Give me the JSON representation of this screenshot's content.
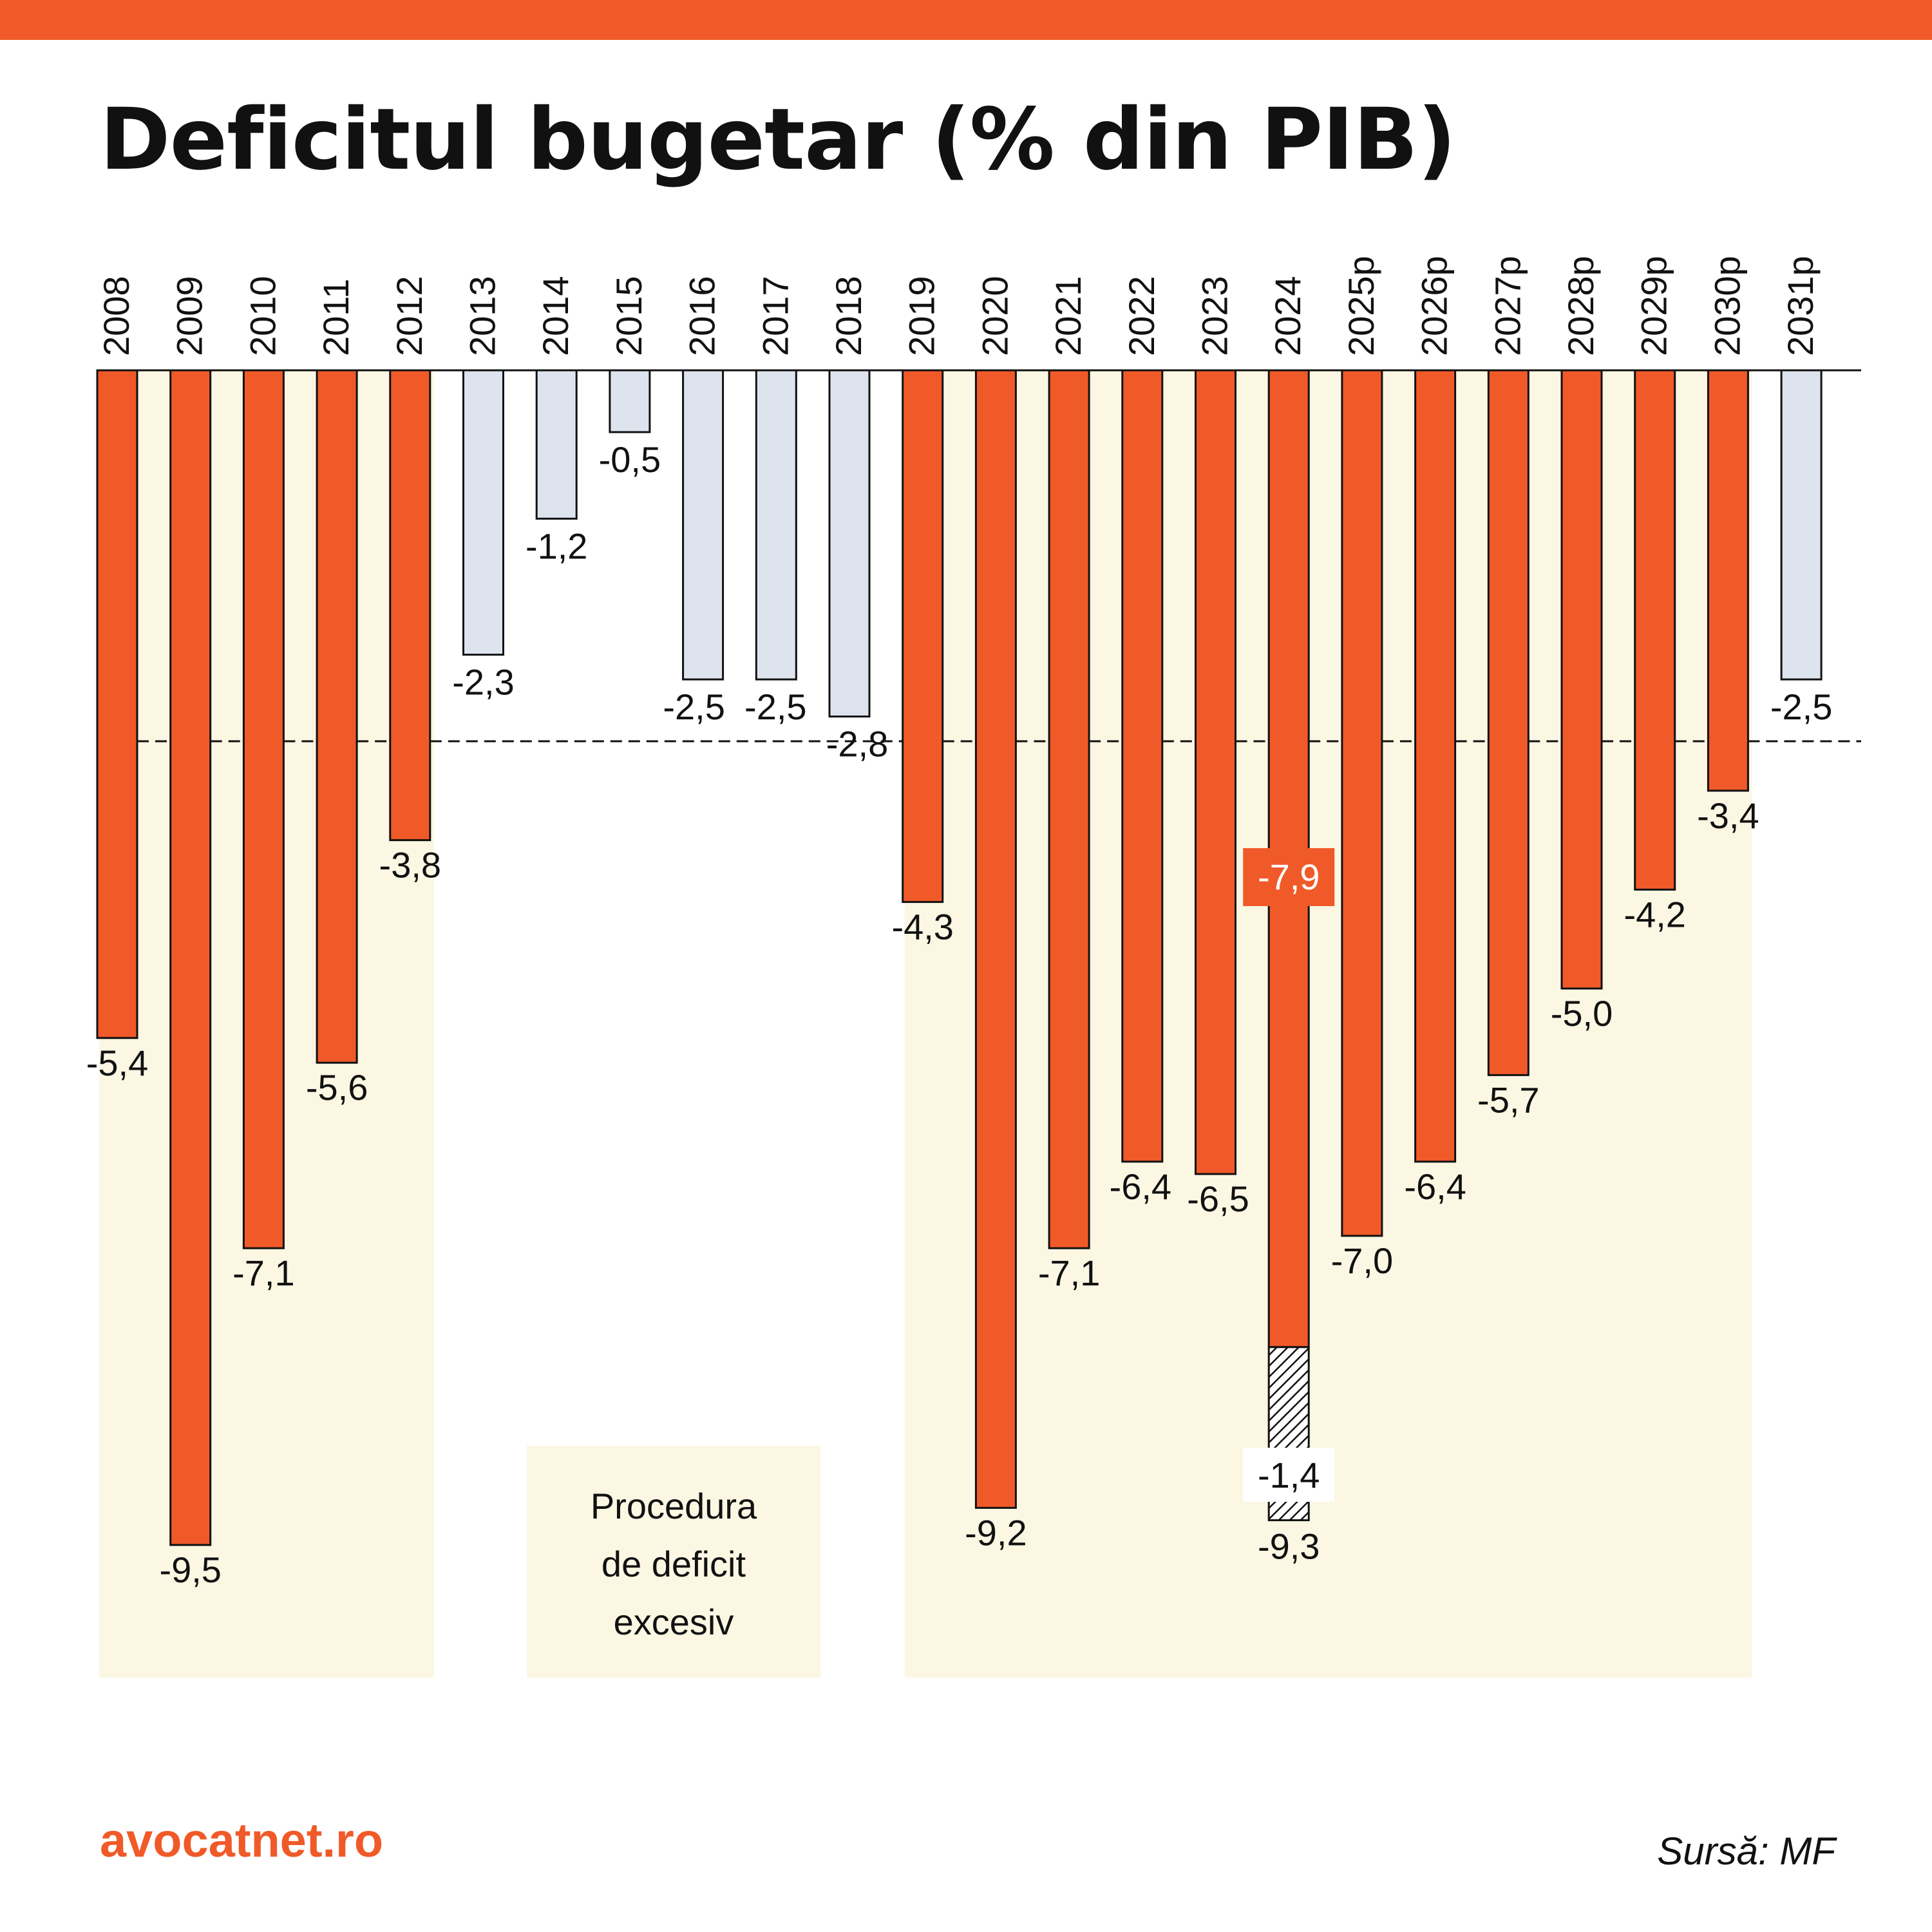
{
  "title": "Deficitul bugetar (% din PIB)",
  "brand": "avocatnet.ro",
  "source": "Sursă: MF",
  "colors": {
    "accent": "#f05a28",
    "edp_bar": "#f05a28",
    "non_edp_bar": "#dee4ee",
    "edp_background": "#fbf7e3",
    "text": "#111111"
  },
  "chart_data": {
    "type": "bar",
    "orientation": "vertical, bars hanging downward from zero line",
    "categories": [
      "2008",
      "2009",
      "2010",
      "2011",
      "2012",
      "2013",
      "2014",
      "2015",
      "2016",
      "2017",
      "2018",
      "2019",
      "2020",
      "2021",
      "2022",
      "2023",
      "2024",
      "2025p",
      "2026p",
      "2027p",
      "2028p",
      "2029p",
      "2030p",
      "2031p"
    ],
    "values": [
      -5.4,
      -9.5,
      -7.1,
      -5.6,
      -3.8,
      -2.3,
      -1.2,
      -0.5,
      -2.5,
      -2.5,
      -2.8,
      -4.3,
      -9.2,
      -7.1,
      -6.4,
      -6.5,
      -9.3,
      -7.0,
      -6.4,
      -5.7,
      -5.0,
      -4.2,
      -3.4,
      -2.5
    ],
    "value_labels": [
      "-5,4",
      "-9,5",
      "-7,1",
      "-5,6",
      "-3,8",
      "-2,3",
      "-1,2",
      "-0,5",
      "-2,5",
      "-2,5",
      "-2,8",
      "-4,3",
      "-9,2",
      "-7,1",
      "-6,4",
      "-6,5",
      "-9,3",
      "-7,0",
      "-6,4",
      "-5,7",
      "-5,0",
      "-4,2",
      "-3,4",
      "-2,5"
    ],
    "excessive_deficit_procedure": [
      true,
      true,
      true,
      true,
      true,
      false,
      false,
      false,
      false,
      false,
      false,
      true,
      true,
      true,
      true,
      true,
      true,
      true,
      true,
      true,
      true,
      true,
      true,
      false
    ],
    "edp_periods": [
      [
        "2008",
        "2012"
      ],
      [
        "2019",
        "2030p"
      ]
    ],
    "split_bar": {
      "category": "2024",
      "solid_value": -7.9,
      "solid_label": "-7,9",
      "hatched_segment": -1.4,
      "hatched_label": "-1,4",
      "total_label": "-9,3"
    },
    "reference_line": {
      "value": -3.0,
      "style": "dashed"
    },
    "legend": {
      "label": "Procedura de deficit excesiv",
      "lines": [
        "Procedura",
        "de deficit",
        "excesiv"
      ]
    },
    "ylim": [
      -10.2,
      0
    ],
    "grid": false,
    "xlabel": "",
    "ylabel": ""
  }
}
